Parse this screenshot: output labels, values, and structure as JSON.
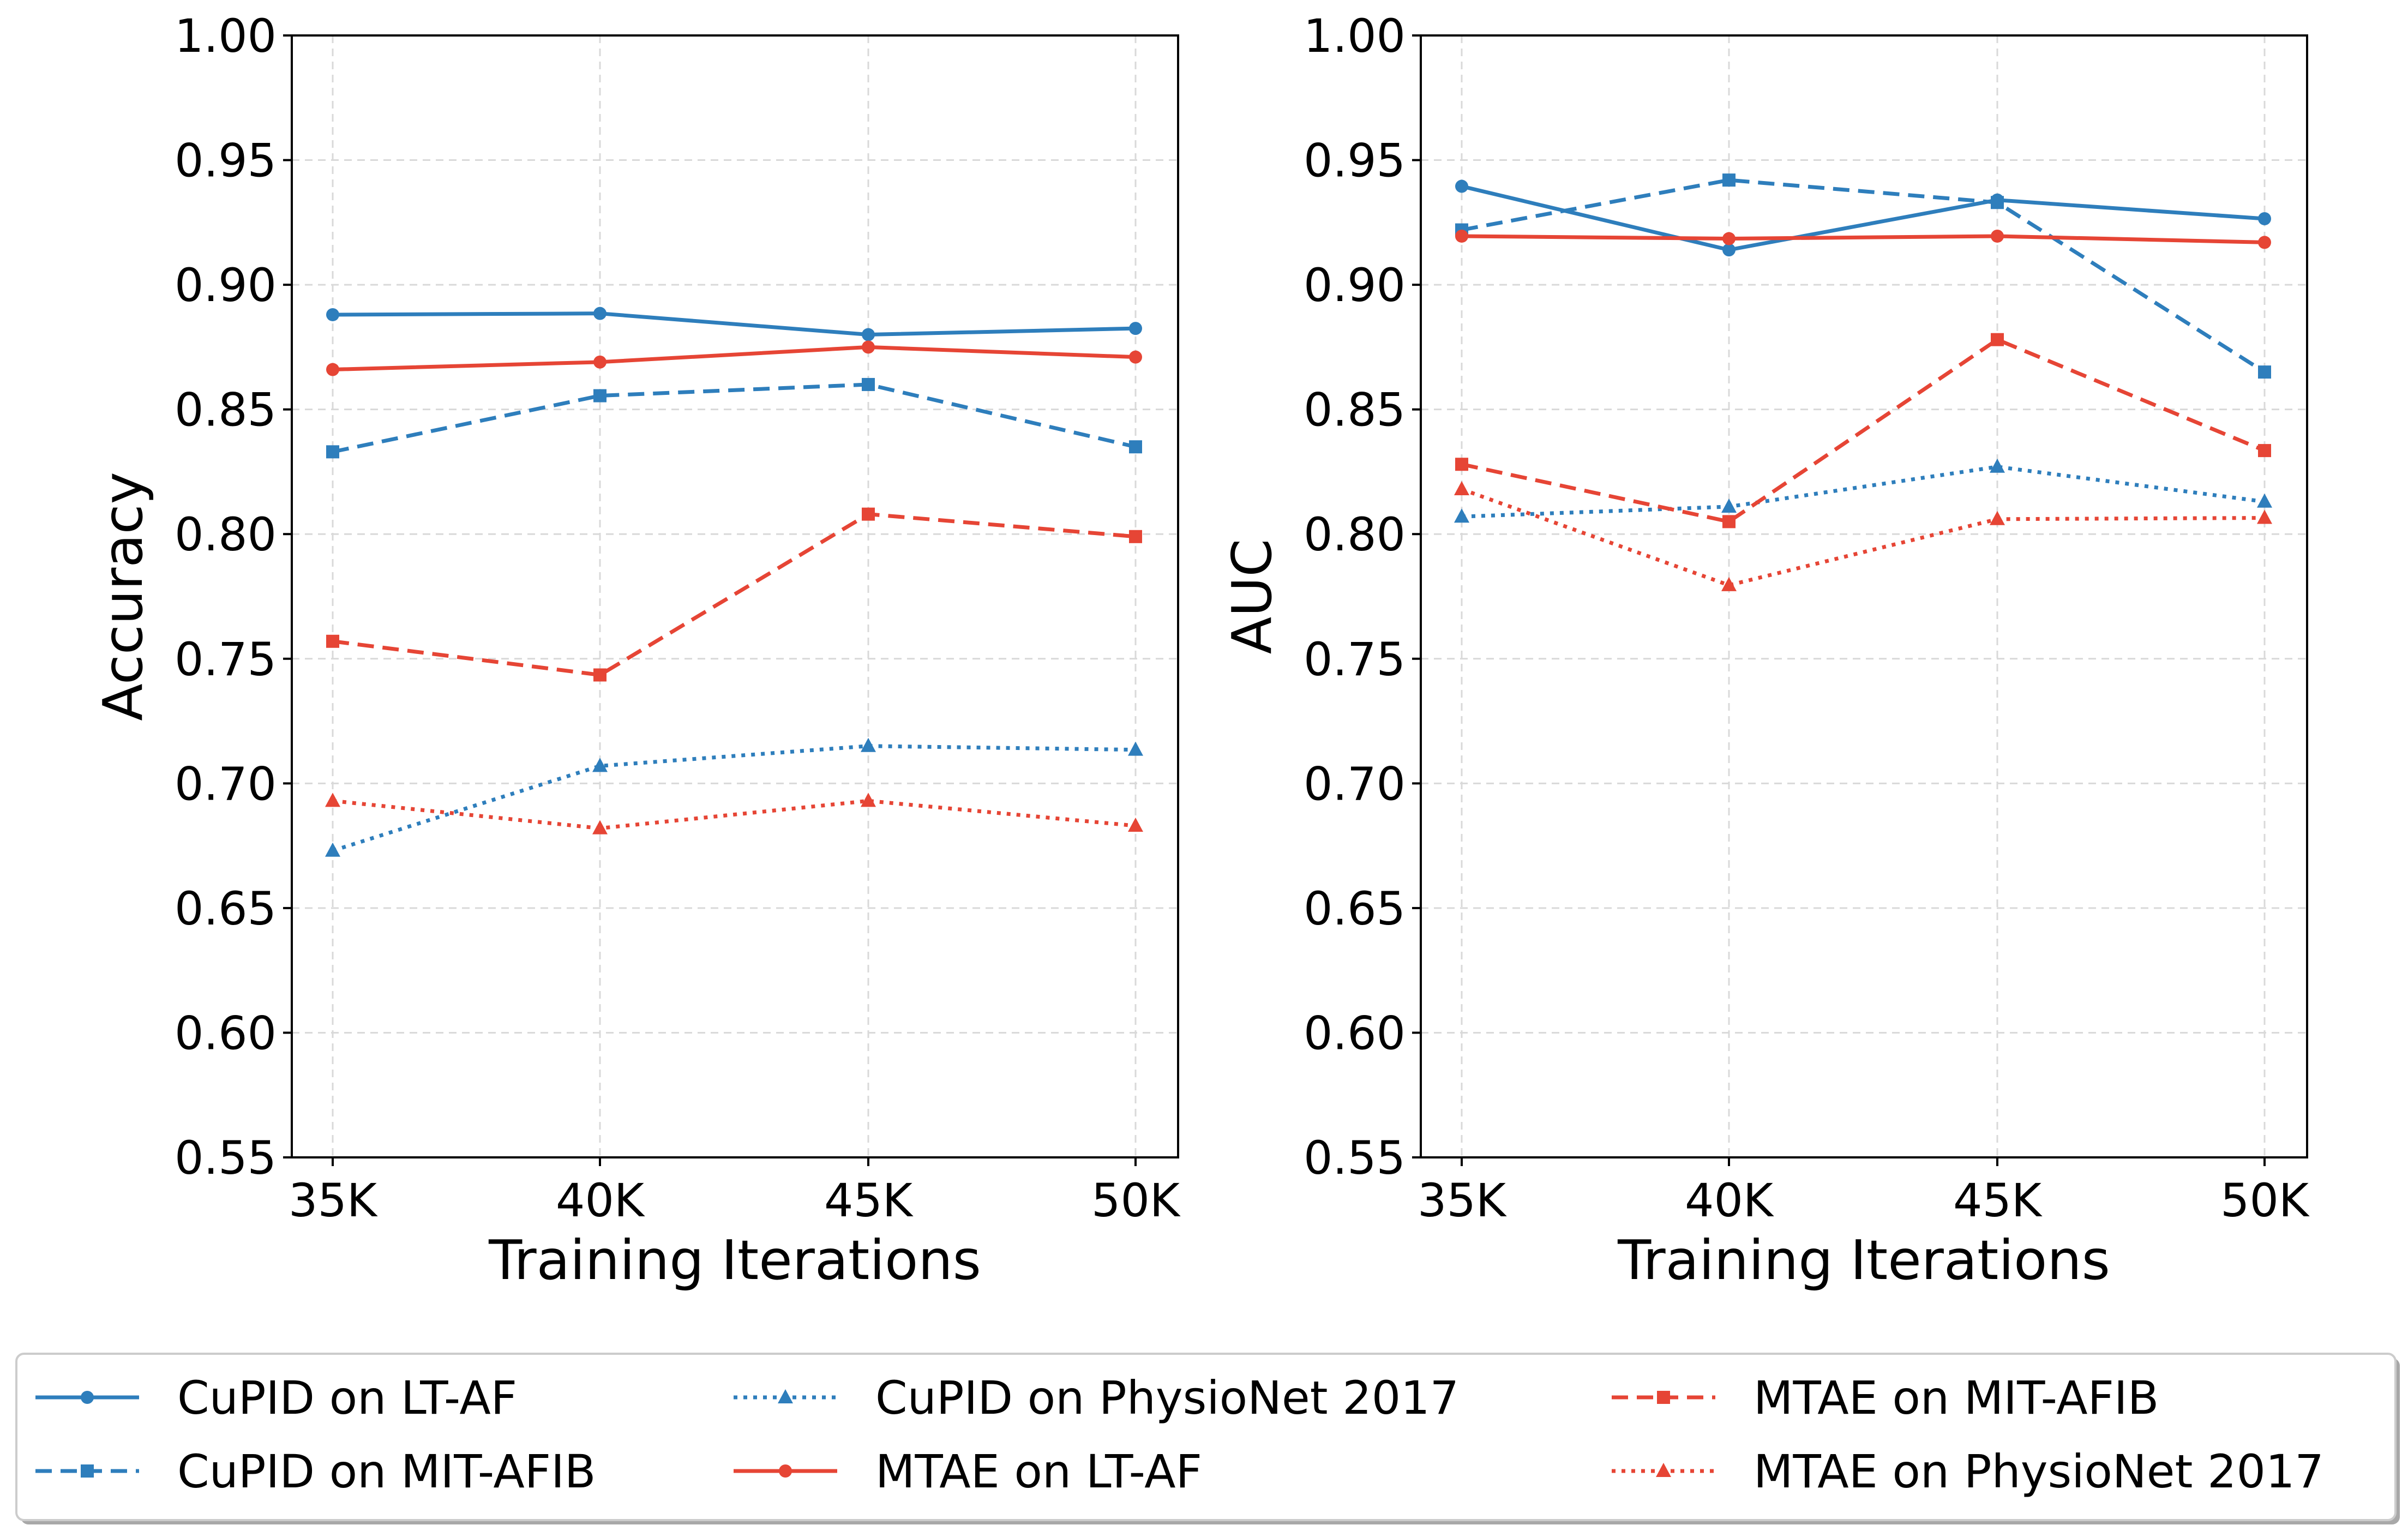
{
  "chart_data": [
    {
      "type": "line",
      "title": "",
      "xlabel": "Training Iterations",
      "ylabel": "Accuracy",
      "categories": [
        "35K",
        "40K",
        "45K",
        "50K"
      ],
      "ylim": [
        0.55,
        1.0
      ],
      "yticks": [
        "0.55",
        "0.60",
        "0.65",
        "0.70",
        "0.75",
        "0.80",
        "0.85",
        "0.90",
        "0.95",
        "1.00"
      ],
      "grid": true,
      "series": [
        {
          "name": "CuPID on LT-AF",
          "color": "#2e7ebc",
          "dash": "solid",
          "marker": "circle",
          "values": [
            0.888,
            0.8885,
            0.88,
            0.8825
          ]
        },
        {
          "name": "CuPID on MIT-AFIB",
          "color": "#2e7ebc",
          "dash": "dashed",
          "marker": "square",
          "values": [
            0.833,
            0.8555,
            0.86,
            0.835
          ]
        },
        {
          "name": "CuPID on PhysioNet 2017",
          "color": "#2e7ebc",
          "dash": "dotted",
          "marker": "triangle",
          "values": [
            0.673,
            0.707,
            0.715,
            0.7135
          ]
        },
        {
          "name": "MTAE on LT-AF",
          "color": "#e64535",
          "dash": "solid",
          "marker": "circle",
          "values": [
            0.866,
            0.869,
            0.875,
            0.871
          ]
        },
        {
          "name": "MTAE on MIT-AFIB",
          "color": "#e64535",
          "dash": "dashed",
          "marker": "square",
          "values": [
            0.757,
            0.7435,
            0.808,
            0.799
          ]
        },
        {
          "name": "MTAE on PhysioNet 2017",
          "color": "#e64535",
          "dash": "dotted",
          "marker": "triangle",
          "values": [
            0.693,
            0.682,
            0.693,
            0.683
          ]
        }
      ]
    },
    {
      "type": "line",
      "title": "",
      "xlabel": "Training Iterations",
      "ylabel": "AUC",
      "categories": [
        "35K",
        "40K",
        "45K",
        "50K"
      ],
      "ylim": [
        0.55,
        1.0
      ],
      "yticks": [
        "0.55",
        "0.60",
        "0.65",
        "0.70",
        "0.75",
        "0.80",
        "0.85",
        "0.90",
        "0.95",
        "1.00"
      ],
      "grid": true,
      "series": [
        {
          "name": "CuPID on LT-AF",
          "color": "#2e7ebc",
          "dash": "solid",
          "marker": "circle",
          "values": [
            0.9395,
            0.914,
            0.934,
            0.9265
          ]
        },
        {
          "name": "CuPID on MIT-AFIB",
          "color": "#2e7ebc",
          "dash": "dashed",
          "marker": "square",
          "values": [
            0.922,
            0.942,
            0.933,
            0.865
          ]
        },
        {
          "name": "CuPID on PhysioNet 2017",
          "color": "#2e7ebc",
          "dash": "dotted",
          "marker": "triangle",
          "values": [
            0.807,
            0.811,
            0.827,
            0.813
          ]
        },
        {
          "name": "MTAE on LT-AF",
          "color": "#e64535",
          "dash": "solid",
          "marker": "circle",
          "values": [
            0.9195,
            0.9185,
            0.9195,
            0.917
          ]
        },
        {
          "name": "MTAE on MIT-AFIB",
          "color": "#e64535",
          "dash": "dashed",
          "marker": "square",
          "values": [
            0.828,
            0.805,
            0.878,
            0.8335
          ]
        },
        {
          "name": "MTAE on PhysioNet 2017",
          "color": "#e64535",
          "dash": "dotted",
          "marker": "triangle",
          "values": [
            0.818,
            0.7795,
            0.806,
            0.8065
          ]
        }
      ]
    }
  ],
  "legend": {
    "position": "bottom",
    "entries": [
      "CuPID on LT-AF",
      "CuPID on MIT-AFIB",
      "CuPID on PhysioNet 2017",
      "MTAE on LT-AF",
      "MTAE on MIT-AFIB",
      "MTAE on PhysioNet 2017"
    ]
  }
}
